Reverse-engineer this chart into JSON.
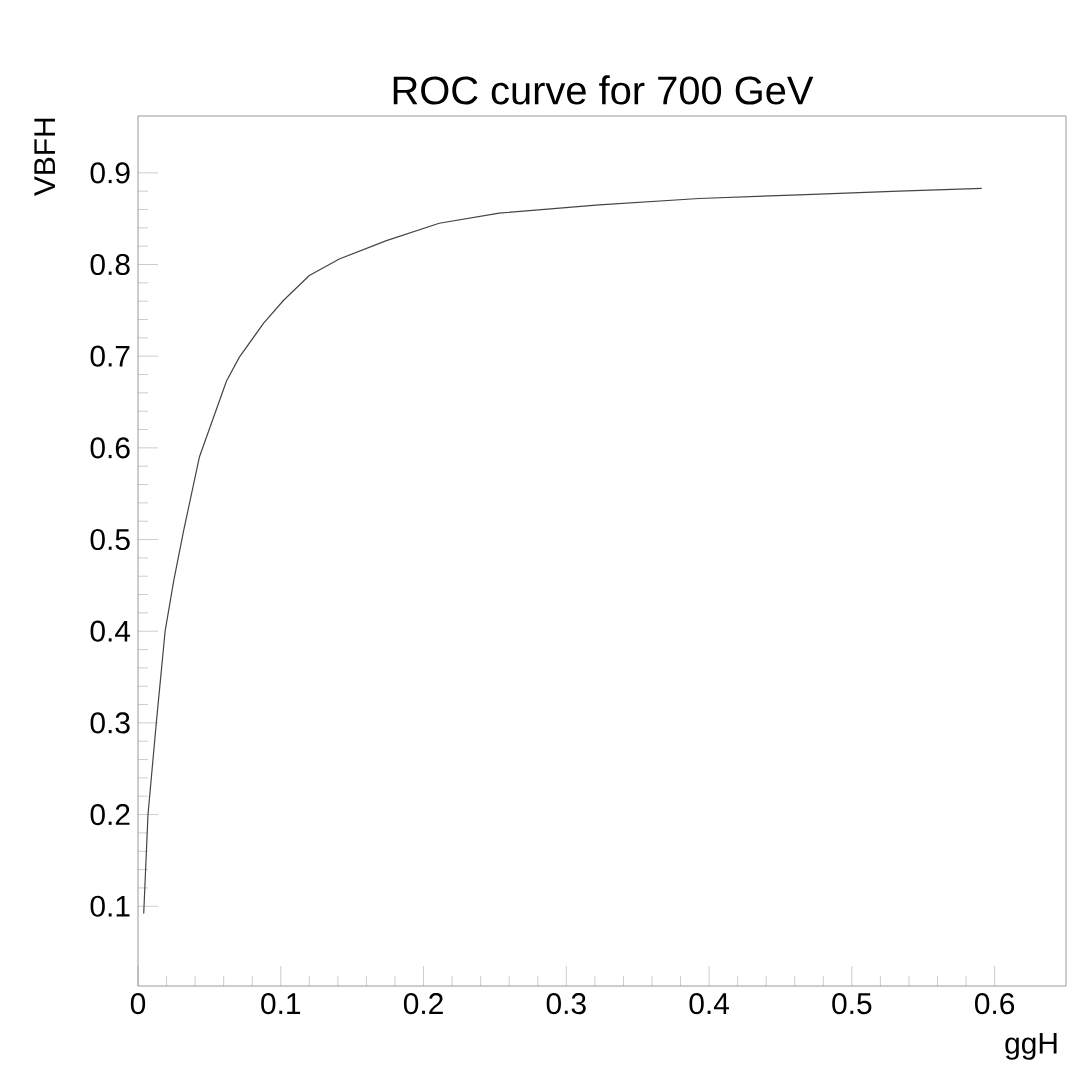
{
  "chart_data": {
    "type": "line",
    "title": "ROC curve for 700 GeV",
    "xlabel": "ggH",
    "ylabel": "VBFH",
    "x": [
      0.004,
      0.007,
      0.013,
      0.019,
      0.025,
      0.032,
      0.043,
      0.062,
      0.071,
      0.088,
      0.102,
      0.12,
      0.141,
      0.174,
      0.211,
      0.253,
      0.323,
      0.393,
      0.463,
      0.533,
      0.591
    ],
    "values": [
      0.092,
      0.2,
      0.303,
      0.4,
      0.455,
      0.51,
      0.59,
      0.673,
      0.699,
      0.736,
      0.761,
      0.788,
      0.806,
      0.826,
      0.845,
      0.856,
      0.865,
      0.872,
      0.876,
      0.88,
      0.883
    ],
    "color": "#444444",
    "xlim": [
      0,
      0.65
    ],
    "ylim": [
      0.013,
      0.962
    ],
    "xticks": [
      0,
      0.1,
      0.2,
      0.3,
      0.4,
      0.5,
      0.6
    ],
    "yticks": [
      0.1,
      0.2,
      0.3,
      0.4,
      0.5,
      0.6,
      0.7,
      0.8,
      0.9
    ]
  }
}
